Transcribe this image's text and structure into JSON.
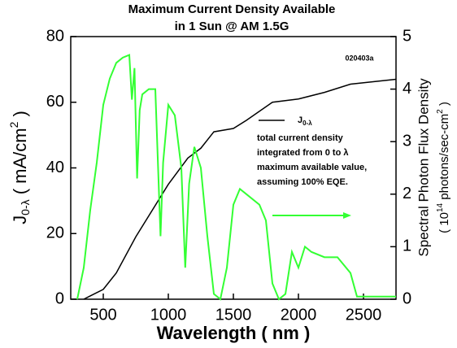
{
  "chart_data": {
    "type": "line",
    "title": "Maximum Current Density Available",
    "subtitle": "in 1 Sun @ AM 1.5G",
    "x_label": "Wavelength ( nm )",
    "y_label": {
      "main": "J",
      "sub": "0-λ",
      "rest": " ( mA/cm",
      "sup": "2",
      "end": " )"
    },
    "y2_label": {
      "line1": "Spectral Photon Flux Density",
      "pre": "( 10",
      "sup1": "14",
      "mid": " photons/sec-cm",
      "sup2": "2",
      "end": " )"
    },
    "annotations": {
      "id": "020403a",
      "legend_sub": "0-λ",
      "lines": [
        "total current density",
        "integrated from 0 to λ",
        "maximum available value,",
        "assuming 100% EQE."
      ]
    },
    "xlim": [
      250,
      2750
    ],
    "xticks": [
      500,
      1000,
      1500,
      2000,
      2500
    ],
    "ylim": [
      0,
      80
    ],
    "yticks": [
      0,
      20,
      40,
      60,
      80
    ],
    "y2lim": [
      0,
      5
    ],
    "y2ticks": [
      0,
      1,
      2,
      3,
      4,
      5
    ],
    "series": [
      {
        "name": "J",
        "color": "#000000",
        "x": [
          350,
          400,
          500,
          600,
          750,
          1000,
          1150,
          1250,
          1350,
          1500,
          1600,
          1800,
          2000,
          2200,
          2400,
          2750
        ],
        "values": [
          0,
          1,
          3,
          8,
          19,
          35,
          43,
          46,
          51,
          52,
          54.5,
          60,
          61,
          63,
          65.5,
          67
        ]
      },
      {
        "color": "#33ff33",
        "axis": "y2",
        "x": [
          300,
          350,
          400,
          450,
          500,
          550,
          600,
          650,
          700,
          720,
          740,
          760,
          780,
          800,
          850,
          900,
          940,
          960,
          1000,
          1050,
          1100,
          1130,
          1160,
          1200,
          1250,
          1300,
          1350,
          1400,
          1450,
          1500,
          1550,
          1600,
          1700,
          1750,
          1800,
          1850,
          1900,
          1950,
          2000,
          2050,
          2100,
          2200,
          2300,
          2400,
          2450,
          2750
        ],
        "values": [
          0,
          0.6,
          1.7,
          2.6,
          3.7,
          4.2,
          4.5,
          4.6,
          4.65,
          3.8,
          4.4,
          2.3,
          3.6,
          3.9,
          4.0,
          4.0,
          1.2,
          2.6,
          3.7,
          3.5,
          2.5,
          0.6,
          2.2,
          2.9,
          2.5,
          1.2,
          0.1,
          0,
          0.6,
          1.8,
          2.1,
          2.0,
          1.8,
          1.5,
          0.3,
          0,
          0.1,
          0.9,
          0.6,
          1.0,
          0.9,
          0.8,
          0.8,
          0.5,
          0.05,
          0.05
        ]
      }
    ]
  }
}
